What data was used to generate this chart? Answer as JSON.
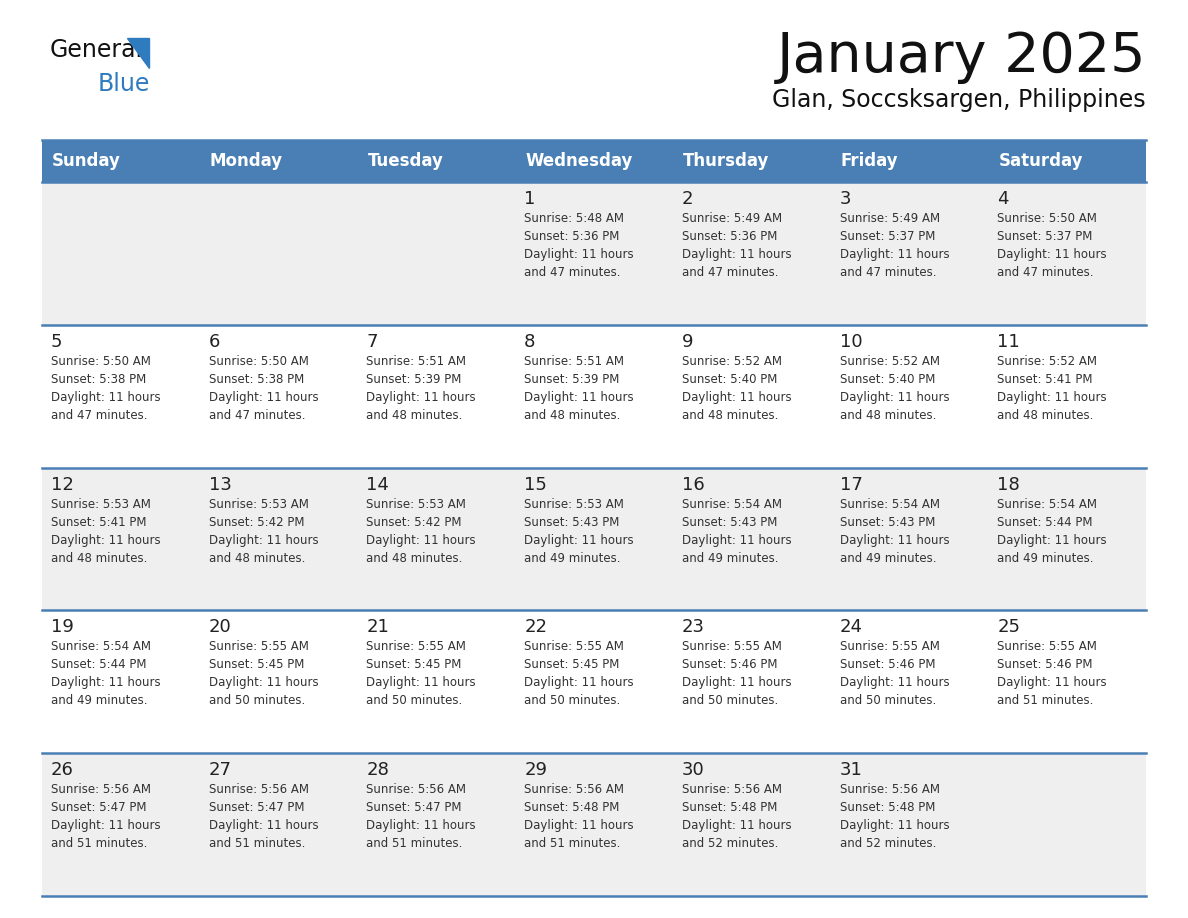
{
  "title": "January 2025",
  "subtitle": "Glan, Soccsksargen, Philippines",
  "days_of_week": [
    "Sunday",
    "Monday",
    "Tuesday",
    "Wednesday",
    "Thursday",
    "Friday",
    "Saturday"
  ],
  "header_bg": "#4A7FB5",
  "header_text_color": "#FFFFFF",
  "cell_bg_odd": "#EFEFEF",
  "cell_bg_even": "#FFFFFF",
  "cell_border_color": "#4A7FB5",
  "day_number_color": "#222222",
  "cell_text_color": "#333333",
  "title_color": "#111111",
  "subtitle_color": "#111111",
  "logo_general_color": "#111111",
  "logo_blue_color": "#2E7BBF",
  "calendar": [
    [
      {
        "day": null,
        "info": null
      },
      {
        "day": null,
        "info": null
      },
      {
        "day": null,
        "info": null
      },
      {
        "day": "1",
        "info": "Sunrise: 5:48 AM\nSunset: 5:36 PM\nDaylight: 11 hours\nand 47 minutes."
      },
      {
        "day": "2",
        "info": "Sunrise: 5:49 AM\nSunset: 5:36 PM\nDaylight: 11 hours\nand 47 minutes."
      },
      {
        "day": "3",
        "info": "Sunrise: 5:49 AM\nSunset: 5:37 PM\nDaylight: 11 hours\nand 47 minutes."
      },
      {
        "day": "4",
        "info": "Sunrise: 5:50 AM\nSunset: 5:37 PM\nDaylight: 11 hours\nand 47 minutes."
      }
    ],
    [
      {
        "day": "5",
        "info": "Sunrise: 5:50 AM\nSunset: 5:38 PM\nDaylight: 11 hours\nand 47 minutes."
      },
      {
        "day": "6",
        "info": "Sunrise: 5:50 AM\nSunset: 5:38 PM\nDaylight: 11 hours\nand 47 minutes."
      },
      {
        "day": "7",
        "info": "Sunrise: 5:51 AM\nSunset: 5:39 PM\nDaylight: 11 hours\nand 48 minutes."
      },
      {
        "day": "8",
        "info": "Sunrise: 5:51 AM\nSunset: 5:39 PM\nDaylight: 11 hours\nand 48 minutes."
      },
      {
        "day": "9",
        "info": "Sunrise: 5:52 AM\nSunset: 5:40 PM\nDaylight: 11 hours\nand 48 minutes."
      },
      {
        "day": "10",
        "info": "Sunrise: 5:52 AM\nSunset: 5:40 PM\nDaylight: 11 hours\nand 48 minutes."
      },
      {
        "day": "11",
        "info": "Sunrise: 5:52 AM\nSunset: 5:41 PM\nDaylight: 11 hours\nand 48 minutes."
      }
    ],
    [
      {
        "day": "12",
        "info": "Sunrise: 5:53 AM\nSunset: 5:41 PM\nDaylight: 11 hours\nand 48 minutes."
      },
      {
        "day": "13",
        "info": "Sunrise: 5:53 AM\nSunset: 5:42 PM\nDaylight: 11 hours\nand 48 minutes."
      },
      {
        "day": "14",
        "info": "Sunrise: 5:53 AM\nSunset: 5:42 PM\nDaylight: 11 hours\nand 48 minutes."
      },
      {
        "day": "15",
        "info": "Sunrise: 5:53 AM\nSunset: 5:43 PM\nDaylight: 11 hours\nand 49 minutes."
      },
      {
        "day": "16",
        "info": "Sunrise: 5:54 AM\nSunset: 5:43 PM\nDaylight: 11 hours\nand 49 minutes."
      },
      {
        "day": "17",
        "info": "Sunrise: 5:54 AM\nSunset: 5:43 PM\nDaylight: 11 hours\nand 49 minutes."
      },
      {
        "day": "18",
        "info": "Sunrise: 5:54 AM\nSunset: 5:44 PM\nDaylight: 11 hours\nand 49 minutes."
      }
    ],
    [
      {
        "day": "19",
        "info": "Sunrise: 5:54 AM\nSunset: 5:44 PM\nDaylight: 11 hours\nand 49 minutes."
      },
      {
        "day": "20",
        "info": "Sunrise: 5:55 AM\nSunset: 5:45 PM\nDaylight: 11 hours\nand 50 minutes."
      },
      {
        "day": "21",
        "info": "Sunrise: 5:55 AM\nSunset: 5:45 PM\nDaylight: 11 hours\nand 50 minutes."
      },
      {
        "day": "22",
        "info": "Sunrise: 5:55 AM\nSunset: 5:45 PM\nDaylight: 11 hours\nand 50 minutes."
      },
      {
        "day": "23",
        "info": "Sunrise: 5:55 AM\nSunset: 5:46 PM\nDaylight: 11 hours\nand 50 minutes."
      },
      {
        "day": "24",
        "info": "Sunrise: 5:55 AM\nSunset: 5:46 PM\nDaylight: 11 hours\nand 50 minutes."
      },
      {
        "day": "25",
        "info": "Sunrise: 5:55 AM\nSunset: 5:46 PM\nDaylight: 11 hours\nand 51 minutes."
      }
    ],
    [
      {
        "day": "26",
        "info": "Sunrise: 5:56 AM\nSunset: 5:47 PM\nDaylight: 11 hours\nand 51 minutes."
      },
      {
        "day": "27",
        "info": "Sunrise: 5:56 AM\nSunset: 5:47 PM\nDaylight: 11 hours\nand 51 minutes."
      },
      {
        "day": "28",
        "info": "Sunrise: 5:56 AM\nSunset: 5:47 PM\nDaylight: 11 hours\nand 51 minutes."
      },
      {
        "day": "29",
        "info": "Sunrise: 5:56 AM\nSunset: 5:48 PM\nDaylight: 11 hours\nand 51 minutes."
      },
      {
        "day": "30",
        "info": "Sunrise: 5:56 AM\nSunset: 5:48 PM\nDaylight: 11 hours\nand 52 minutes."
      },
      {
        "day": "31",
        "info": "Sunrise: 5:56 AM\nSunset: 5:48 PM\nDaylight: 11 hours\nand 52 minutes."
      },
      {
        "day": null,
        "info": null
      }
    ]
  ]
}
